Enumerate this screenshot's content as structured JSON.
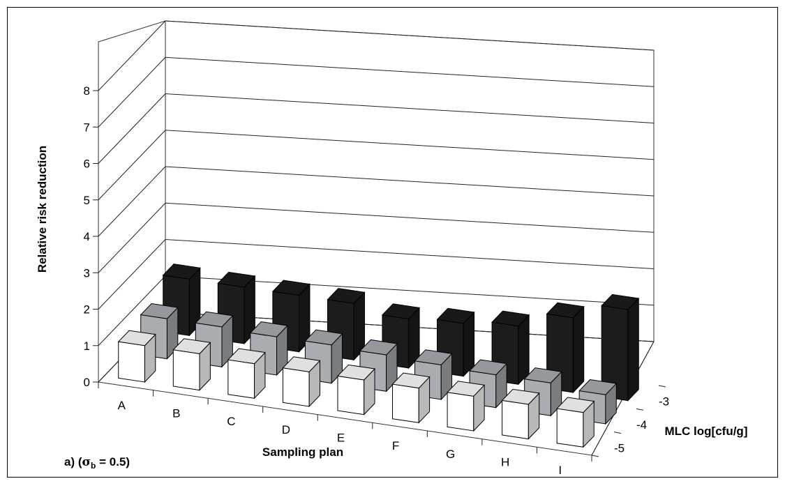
{
  "chart_data": {
    "type": "bar",
    "subtype": "3d-column",
    "panel_label": "a) (",
    "panel_sigma": "σ",
    "panel_sub": "b",
    "panel_tail": " = 0.5)",
    "xlabel": "Sampling plan",
    "ylabel": "Relative risk reduction",
    "zlabel": "MLC log[cfu/g]",
    "categories": [
      "A",
      "B",
      "C",
      "D",
      "E",
      "F",
      "G",
      "H",
      "I"
    ],
    "y_ticks": [
      "0",
      "1",
      "2",
      "3",
      "4",
      "5",
      "6",
      "7",
      "8"
    ],
    "ylim": [
      0,
      8
    ],
    "series": [
      {
        "name": "-5",
        "color": "#ffffff",
        "values": [
          1.0,
          1.0,
          0.95,
          0.95,
          0.95,
          0.95,
          0.95,
          0.95,
          0.95
        ]
      },
      {
        "name": "-4",
        "color": "#a9adb2",
        "values": [
          1.1,
          1.1,
          1.05,
          1.05,
          1.0,
          0.95,
          0.9,
          0.9,
          0.8
        ]
      },
      {
        "name": "-3",
        "color": "#1c1c1c",
        "values": [
          1.55,
          1.55,
          1.55,
          1.55,
          1.35,
          1.45,
          1.6,
          2.05,
          2.5
        ]
      }
    ],
    "grid": true,
    "legend": "none"
  }
}
